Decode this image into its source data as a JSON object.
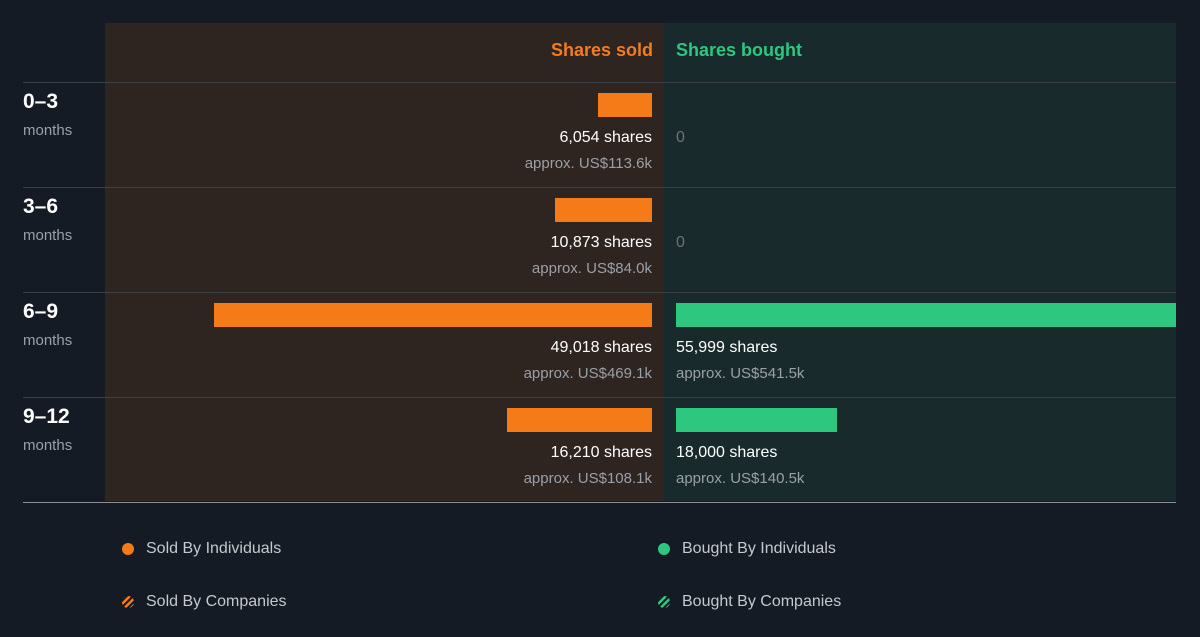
{
  "colors": {
    "sold": "#f57a18",
    "bought": "#2ec77f"
  },
  "chart_data": {
    "type": "bar",
    "orientation": "horizontal-diverging",
    "headers": {
      "sold": "Shares sold",
      "bought": "Shares bought"
    },
    "categories": [
      {
        "range": "0–3",
        "unit": "months"
      },
      {
        "range": "3–6",
        "unit": "months"
      },
      {
        "range": "6–9",
        "unit": "months"
      },
      {
        "range": "9–12",
        "unit": "months"
      }
    ],
    "series": [
      {
        "name": "Shares sold",
        "values": [
          6054,
          10873,
          49018,
          16210
        ],
        "labels": [
          "6,054 shares",
          "10,873 shares",
          "49,018 shares",
          "16,210 shares"
        ],
        "approx": [
          "approx. US$113.6k",
          "approx. US$84.0k",
          "approx. US$469.1k",
          "approx. US$108.1k"
        ]
      },
      {
        "name": "Shares bought",
        "values": [
          0,
          0,
          55999,
          18000
        ],
        "labels": [
          "0",
          "0",
          "55,999 shares",
          "18,000 shares"
        ],
        "approx": [
          "",
          "",
          "approx. US$541.5k",
          "approx. US$140.5k"
        ]
      }
    ],
    "legend": [
      {
        "label": "Sold By Individuals",
        "marker": "dot",
        "color": "#f57a18"
      },
      {
        "label": "Bought By Individuals",
        "marker": "dot",
        "color": "#2ec77f"
      },
      {
        "label": "Sold By Companies",
        "marker": "hatch",
        "color": "#f57a18"
      },
      {
        "label": "Bought By Companies",
        "marker": "hatch",
        "color": "#2ec77f"
      }
    ]
  }
}
